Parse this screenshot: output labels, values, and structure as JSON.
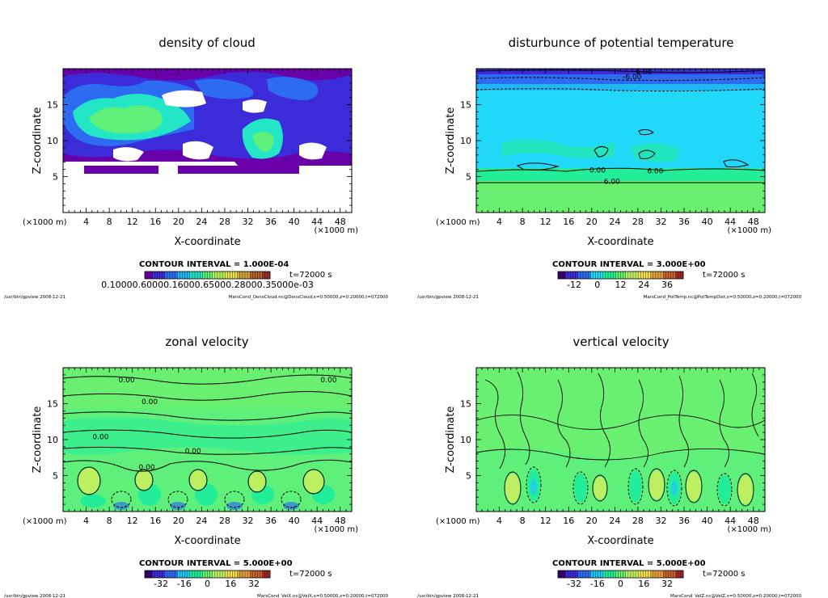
{
  "chart_data": [
    {
      "type": "heatmap",
      "title": "density of cloud",
      "xlabel": "X-coordinate",
      "ylabel": "Z-coordinate",
      "x_unit": "(×1000 m)",
      "y_unit": "(×1000 m)",
      "xlim": [
        0,
        50
      ],
      "ylim": [
        0,
        20
      ],
      "xticks": [
        4,
        8,
        12,
        16,
        20,
        24,
        28,
        32,
        36,
        40,
        44,
        48
      ],
      "yticks": [
        5,
        10,
        15
      ],
      "contour_interval": "CONTOUR INTERVAL = 1.000E-04",
      "time": "t=72000 s",
      "colorbar_text": "0.10000.60000.16000.65000.28000.35000e-03",
      "colorbar_colors": [
        "#6a00aa",
        "#3b2bd8",
        "#2d6cf0",
        "#20b8f2",
        "#22e6c6",
        "#5ef07a",
        "#aef05a",
        "#e8e050",
        "#d2a23c",
        "#b4602c",
        "#9a2c2c"
      ],
      "contour_labels": [],
      "footer_left": "/usr/bin/gpview   2008-12-21",
      "footer_right": "MarsCond_DensCloud.nc@DensCloud,x=0:50000,z=0:20000,t=072000"
    },
    {
      "type": "heatmap",
      "title": "disturbunce of potential temperature",
      "xlabel": "X-coordinate",
      "ylabel": "Z-coordinate",
      "x_unit": "(×1000 m)",
      "y_unit": "(×1000 m)",
      "xlim": [
        0,
        50
      ],
      "ylim": [
        0,
        20
      ],
      "xticks": [
        4,
        8,
        12,
        16,
        20,
        24,
        28,
        32,
        36,
        40,
        44,
        48
      ],
      "yticks": [
        5,
        10,
        15
      ],
      "contour_interval": "CONTOUR INTERVAL = 3.000E+00",
      "time": "t=72000 s",
      "colorbar_ticks": [
        "-12",
        "0",
        "12",
        "24",
        "36"
      ],
      "colorbar_colors": [
        "#3a0070",
        "#3b2bd8",
        "#2d6cf0",
        "#20d8f8",
        "#22ee9a",
        "#6af070",
        "#bdf060",
        "#f0e050",
        "#e0a040",
        "#c86030",
        "#a02828"
      ],
      "contour_labels": [
        {
          "text": "-6.00",
          "x": 27,
          "y": 18.9
        },
        {
          "text": "6.00",
          "x": 29,
          "y": 19.6
        },
        {
          "text": "0.00",
          "x": 21,
          "y": 5.9
        },
        {
          "text": "6.00",
          "x": 31,
          "y": 5.8
        },
        {
          "text": "6.00",
          "x": 23.5,
          "y": 4.3
        }
      ],
      "footer_left": "/usr/bin/gpview   2008-12-21",
      "footer_right": "MarsCond_PotTemp.nc@PotTempDist,x=0:50000,z=0:20000,t=072000"
    },
    {
      "type": "heatmap",
      "title": "zonal velocity",
      "xlabel": "X-coordinate",
      "ylabel": "Z-coordinate",
      "x_unit": "(×1000 m)",
      "y_unit": "(×1000 m)",
      "xlim": [
        0,
        50
      ],
      "ylim": [
        0,
        20
      ],
      "xticks": [
        4,
        8,
        12,
        16,
        20,
        24,
        28,
        32,
        36,
        40,
        44,
        48
      ],
      "yticks": [
        5,
        10,
        15
      ],
      "contour_interval": "CONTOUR INTERVAL = 5.000E+00",
      "time": "t=72000 s",
      "colorbar_ticks": [
        "-32",
        "-16",
        "0",
        "16",
        "32"
      ],
      "colorbar_colors": [
        "#3a0070",
        "#3b2bd8",
        "#2d6cf0",
        "#20c8f0",
        "#22ee9a",
        "#6af070",
        "#bdf060",
        "#f0e050",
        "#e0a040",
        "#c86030",
        "#a02828"
      ],
      "contour_labels": [
        {
          "text": "0.00",
          "x": 11,
          "y": 18.3
        },
        {
          "text": "0.00",
          "x": 46,
          "y": 18.3
        },
        {
          "text": "0.00",
          "x": 15,
          "y": 15.3
        },
        {
          "text": "0.00",
          "x": 6.5,
          "y": 10.4
        },
        {
          "text": "0.00",
          "x": 22.5,
          "y": 8.4
        },
        {
          "text": "0.00",
          "x": 14.5,
          "y": 6.2
        }
      ],
      "footer_left": "/usr/bin/gpview   2008-12-21",
      "footer_right": "MarsCond_VelX.nc@VelX,x=0:50000,z=0:20000,t=072000"
    },
    {
      "type": "heatmap",
      "title": "vertical velocity",
      "xlabel": "X-coordinate",
      "ylabel": "Z-coordinate",
      "x_unit": "(×1000 m)",
      "y_unit": "(×1000 m)",
      "xlim": [
        0,
        50
      ],
      "ylim": [
        0,
        20
      ],
      "xticks": [
        4,
        8,
        12,
        16,
        20,
        24,
        28,
        32,
        36,
        40,
        44,
        48
      ],
      "yticks": [
        5,
        10,
        15
      ],
      "contour_interval": "CONTOUR INTERVAL = 5.000E+00",
      "time": "t=72000 s",
      "colorbar_ticks": [
        "-32",
        "-16",
        "0",
        "16",
        "32"
      ],
      "colorbar_colors": [
        "#3a0070",
        "#3b2bd8",
        "#2d6cf0",
        "#20c8f0",
        "#22ee9a",
        "#6af070",
        "#bdf060",
        "#f0e050",
        "#e0a040",
        "#c86030",
        "#a02828"
      ],
      "contour_labels": [],
      "footer_left": "/usr/bin/gpview   2008-12-21",
      "footer_right": "MarsCond_VelZ.nc@VelZ,x=0:50000,z=0:20000,t=072000"
    }
  ]
}
